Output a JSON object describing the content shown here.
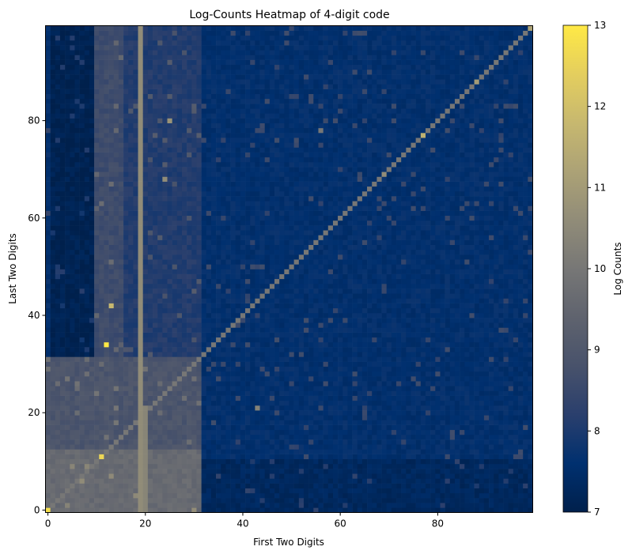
{
  "chart_data": {
    "type": "heatmap",
    "title": "Log-Counts Heatmap of 4-digit code",
    "xlabel": "First Two Digits",
    "ylabel": "Last Two Digits",
    "x_ticks": [
      {
        "value": 0,
        "label": "0"
      },
      {
        "value": 20,
        "label": "20"
      },
      {
        "value": 40,
        "label": "40"
      },
      {
        "value": 60,
        "label": "60"
      },
      {
        "value": 80,
        "label": "80"
      }
    ],
    "y_ticks": [
      {
        "value": 0,
        "label": "0"
      },
      {
        "value": 20,
        "label": "20"
      },
      {
        "value": 40,
        "label": "40"
      },
      {
        "value": 60,
        "label": "60"
      },
      {
        "value": 80,
        "label": "80"
      }
    ],
    "xlim": [
      0,
      99
    ],
    "ylim": [
      0,
      99
    ],
    "grid_size": [
      100,
      100
    ],
    "colormap": "cividis",
    "colorbar": {
      "label": "Log Counts",
      "range": [
        7,
        13
      ],
      "ticks": [
        {
          "value": 7,
          "label": "7"
        },
        {
          "value": 8,
          "label": "8"
        },
        {
          "value": 9,
          "label": "9"
        },
        {
          "value": 10,
          "label": "10"
        },
        {
          "value": 11,
          "label": "11"
        },
        {
          "value": 12,
          "label": "12"
        },
        {
          "value": 13,
          "label": "13"
        }
      ]
    },
    "background_level": 7.6,
    "regions": [
      {
        "name": "first-digits-0-9-above-row-31",
        "x": [
          1,
          9
        ],
        "y": [
          32,
          99
        ],
        "value": 7.1
      },
      {
        "name": "first-digits-10-31-rows-0-12",
        "x": [
          0,
          31
        ],
        "y": [
          0,
          12
        ],
        "value": 9.6
      },
      {
        "name": "first-digits-10-31-rows-13-31",
        "x": [
          0,
          31
        ],
        "y": [
          13,
          31
        ],
        "value": 8.9
      },
      {
        "name": "first-digits-10-15-band",
        "x": [
          10,
          15
        ],
        "y": [
          32,
          99
        ],
        "value": 8.6
      },
      {
        "name": "first-digits-16-31-band",
        "x": [
          16,
          31
        ],
        "y": [
          32,
          99
        ],
        "value": 8.1
      },
      {
        "name": "first-digits-32-99-rows-0-10",
        "x": [
          32,
          99
        ],
        "y": [
          0,
          10
        ],
        "value": 7.3
      }
    ],
    "lines": [
      {
        "name": "column-19",
        "axis": "x",
        "at": 19,
        "value": 10.6
      },
      {
        "name": "column-20-low",
        "axis": "x",
        "at": 20,
        "from": 0,
        "to": 21,
        "value": 10.4
      },
      {
        "name": "diagonal",
        "axis": "diag",
        "from": 0,
        "to": 99,
        "value": 10.0
      }
    ],
    "highlights": [
      {
        "x": 0,
        "y": 0,
        "value": 12.8
      },
      {
        "x": 12,
        "y": 34,
        "value": 13.0
      },
      {
        "x": 11,
        "y": 11,
        "value": 12.6
      },
      {
        "x": 13,
        "y": 42,
        "value": 11.8
      },
      {
        "x": 24,
        "y": 68,
        "value": 10.6
      },
      {
        "x": 25,
        "y": 80,
        "value": 10.8
      },
      {
        "x": 43,
        "y": 21,
        "value": 10.3
      },
      {
        "x": 56,
        "y": 78,
        "value": 10.0
      },
      {
        "x": 77,
        "y": 77,
        "value": 11.6
      },
      {
        "x": 88,
        "y": 88,
        "value": 11.0
      },
      {
        "x": 99,
        "y": 99,
        "value": 11.2
      },
      {
        "x": 69,
        "y": 69,
        "value": 10.6
      }
    ]
  }
}
